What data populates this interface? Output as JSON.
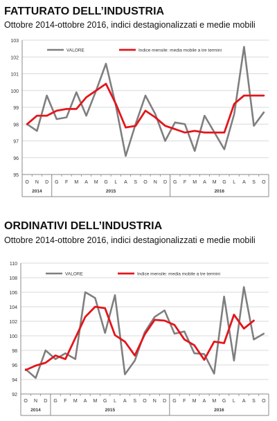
{
  "colors": {
    "valore": "#7f7f7f",
    "media": "#e4151b",
    "grid": "#d9d9d9",
    "axis": "#888888"
  },
  "panels": [
    {
      "title": "FATTURATO DELL’INDUSTRIA",
      "subtitle": "Ottobre 2014-ottobre 2016, indici destagionalizzati e medie mobili"
    },
    {
      "title": "ORDINATIVI DELL’INDUSTRIA",
      "subtitle": "Ottobre 2014-ottobre 2016, indici destagionalizzati e medie mobili"
    }
  ],
  "chart_data": [
    {
      "type": "line",
      "title": "FATTURATO DELL’INDUSTRIA",
      "subtitle": "Ottobre 2014-ottobre 2016, indici destagionalizzati e medie mobili",
      "x": [
        "O",
        "N",
        "D",
        "G",
        "F",
        "M",
        "A",
        "M",
        "G",
        "L",
        "A",
        "S",
        "O",
        "N",
        "D",
        "G",
        "F",
        "M",
        "A",
        "M",
        "G",
        "L",
        "A",
        "S",
        "O"
      ],
      "year_labels": [
        "2014",
        "2015",
        "2016"
      ],
      "ylim": [
        95,
        103
      ],
      "yticks": [
        95,
        96,
        97,
        98,
        99,
        100,
        101,
        102,
        103
      ],
      "legend_position": "top",
      "grid": true,
      "series": [
        {
          "name": "VALORE",
          "color": "#7f7f7f",
          "values": [
            98.0,
            97.6,
            99.7,
            98.3,
            98.4,
            99.9,
            98.5,
            100.0,
            101.6,
            99.1,
            96.1,
            98.0,
            99.7,
            98.6,
            97.0,
            98.1,
            98.0,
            96.4,
            98.5,
            97.5,
            96.5,
            98.6,
            102.6,
            97.9,
            98.7
          ]
        },
        {
          "name": "Indice mensile: media mobile a tre termini",
          "color": "#e4151b",
          "values": [
            98.0,
            98.5,
            98.5,
            98.8,
            98.9,
            98.9,
            99.6,
            100.0,
            100.4,
            99.2,
            97.8,
            97.9,
            98.8,
            98.4,
            97.9,
            97.7,
            97.5,
            97.6,
            97.5,
            97.5,
            97.5,
            99.2,
            99.7,
            99.7,
            99.7
          ]
        }
      ]
    },
    {
      "type": "line",
      "title": "ORDINATIVI DELL’INDUSTRIA",
      "subtitle": "Ottobre 2014-ottobre 2016, indici destagionalizzati e medie mobili",
      "x": [
        "O",
        "N",
        "D",
        "G",
        "F",
        "M",
        "A",
        "M",
        "G",
        "L",
        "A",
        "S",
        "O",
        "N",
        "D",
        "G",
        "F",
        "M",
        "A",
        "M",
        "G",
        "L",
        "A",
        "S",
        "O"
      ],
      "year_labels": [
        "2014",
        "2015",
        "2016"
      ],
      "ylim": [
        92,
        110
      ],
      "yticks": [
        92,
        94,
        96,
        98,
        100,
        102,
        104,
        106,
        108,
        110
      ],
      "legend_position": "top",
      "grid": true,
      "series": [
        {
          "name": "VALORE",
          "color": "#7f7f7f",
          "values": [
            95.4,
            94.2,
            98.0,
            96.8,
            97.6,
            96.8,
            106.0,
            105.2,
            100.4,
            105.6,
            94.7,
            96.6,
            100.5,
            102.6,
            103.5,
            100.3,
            100.6,
            97.6,
            97.5,
            94.8,
            105.4,
            96.6,
            106.7,
            99.5,
            100.3
          ]
        },
        {
          "name": "Indice mensile: media mobile a tre termini",
          "color": "#e4151b",
          "values": [
            95.3,
            95.9,
            96.3,
            97.3,
            96.8,
            99.7,
            102.6,
            104.0,
            103.8,
            100.1,
            99.2,
            97.3,
            100.2,
            102.2,
            102.1,
            101.5,
            99.5,
            98.7,
            96.7,
            99.2,
            99.0,
            102.9,
            101.0,
            102.1,
            null
          ]
        }
      ]
    }
  ]
}
